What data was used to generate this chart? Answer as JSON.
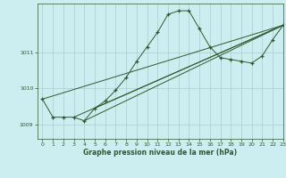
{
  "xlabel": "Graphe pression niveau de la mer (hPa)",
  "bg_color": "#cceef0",
  "line_color": "#2d5a2d",
  "grid_color": "#aacccc",
  "ylim": [
    1008.6,
    1012.35
  ],
  "xlim": [
    -0.5,
    23
  ],
  "yticks": [
    1009,
    1010,
    1011
  ],
  "xticks": [
    0,
    1,
    2,
    3,
    4,
    5,
    6,
    7,
    8,
    9,
    10,
    11,
    12,
    13,
    14,
    15,
    16,
    17,
    18,
    19,
    20,
    21,
    22,
    23
  ],
  "main_line": {
    "x": [
      0,
      1,
      2,
      3,
      4,
      5,
      6,
      7,
      8,
      9,
      10,
      11,
      12,
      13,
      14,
      15,
      16,
      17,
      18,
      19,
      20,
      21,
      22,
      23
    ],
    "y": [
      1009.7,
      1009.2,
      1009.2,
      1009.2,
      1009.1,
      1009.45,
      1009.65,
      1009.95,
      1010.3,
      1010.75,
      1011.15,
      1011.55,
      1012.05,
      1012.15,
      1012.15,
      1011.65,
      1011.15,
      1010.85,
      1010.8,
      1010.75,
      1010.7,
      1010.9,
      1011.35,
      1011.75
    ]
  },
  "straight1": {
    "x": [
      0,
      23
    ],
    "y": [
      1009.7,
      1011.75
    ]
  },
  "straight2": {
    "x": [
      3,
      23
    ],
    "y": [
      1009.2,
      1011.75
    ]
  },
  "straight3": {
    "x": [
      4,
      23
    ],
    "y": [
      1009.1,
      1011.75
    ]
  },
  "straight4": {
    "x": [
      5,
      23
    ],
    "y": [
      1009.45,
      1011.75
    ]
  }
}
